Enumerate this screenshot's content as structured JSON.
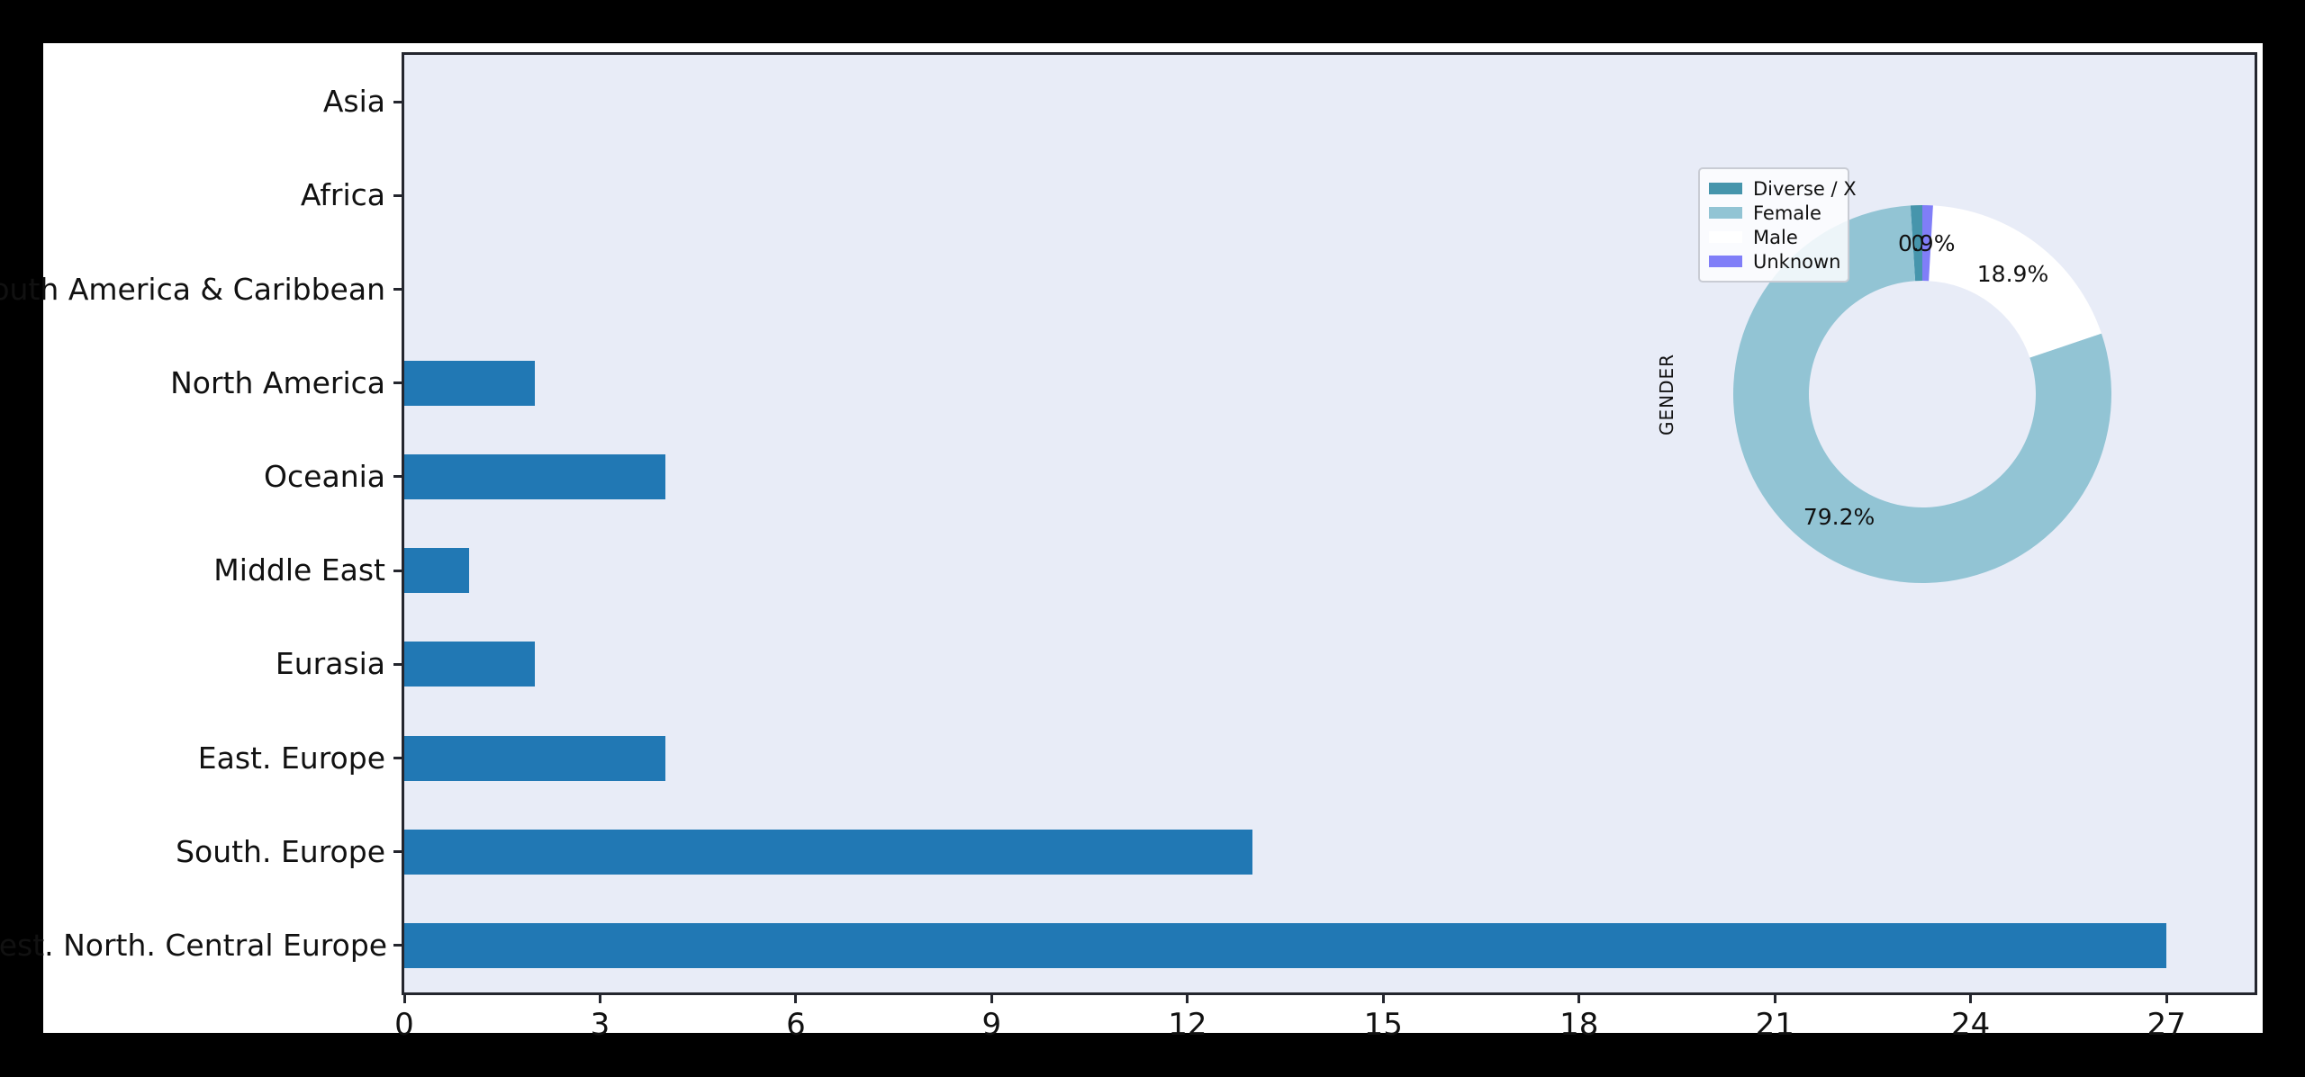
{
  "page": {
    "background_color": "#000000",
    "figure_background_color": "#ffffff"
  },
  "colors": {
    "bar_blue": "#2178b4",
    "plot_background": "#e8ecf7",
    "spine": "#24262e",
    "text": "#111111"
  },
  "chart_data": [
    {
      "type": "bar",
      "orientation": "horizontal",
      "title": "",
      "xlabel": "",
      "ylabel": "",
      "categories": [
        "Asia",
        "Africa",
        "South America & Caribbean",
        "North America",
        "Oceania",
        "Middle East",
        "Eurasia",
        "East. Europe",
        "South. Europe",
        "West. North. Central Europe"
      ],
      "values": [
        0,
        0,
        0,
        2,
        4,
        1,
        2,
        4,
        13,
        27
      ],
      "x_ticks": [
        0,
        3,
        6,
        9,
        12,
        15,
        18,
        21,
        24,
        27
      ],
      "xlim": [
        0,
        28.35
      ],
      "bar_color": "#2178b4",
      "grid": false,
      "plot_background": "#e8ecf7"
    },
    {
      "type": "pie",
      "subtype": "donut",
      "axis_label": "GENDER",
      "start_angle": 90,
      "counterclockwise": true,
      "donut_hole_ratio": 0.6,
      "legend_position": "upper left",
      "slices": [
        {
          "label": "Diverse / X",
          "value": 1.0,
          "pct_label": "1.0%",
          "color": "#4695ac"
        },
        {
          "label": "Female",
          "value": 79.2,
          "pct_label": "79.2%",
          "color": "#92c4d4"
        },
        {
          "label": "Male",
          "value": 18.9,
          "pct_label": "18.9%",
          "color": "#ffffff"
        },
        {
          "label": "Unknown",
          "value": 0.9,
          "pct_label": "0.9%",
          "color": "#807ef8"
        }
      ]
    }
  ]
}
